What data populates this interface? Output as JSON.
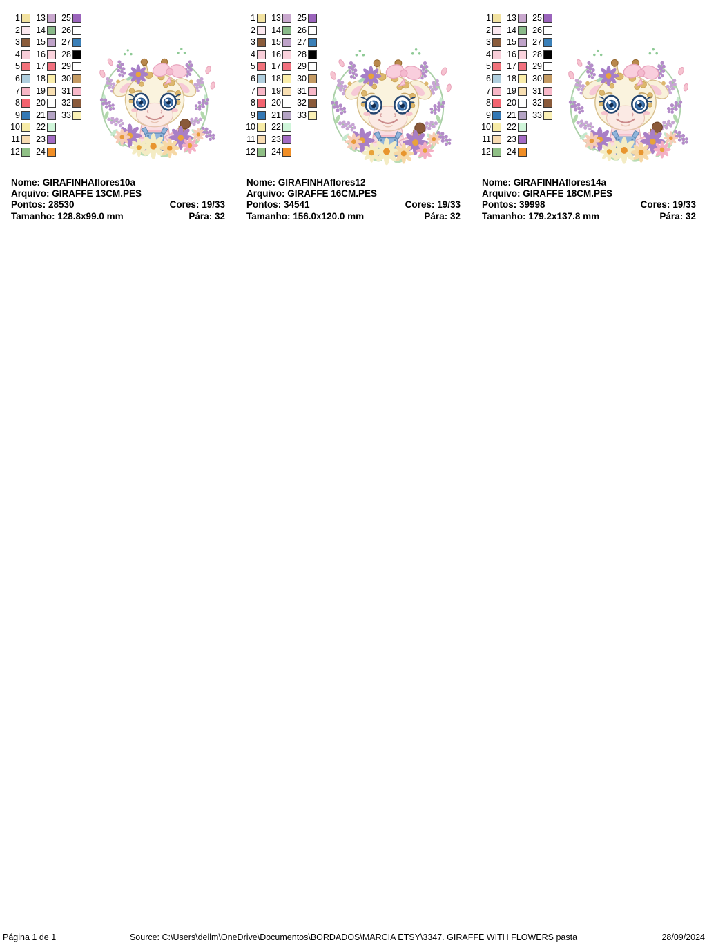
{
  "labels": {
    "nome": "Nome:",
    "arquivo": "Arquivo:",
    "pontos": "Pontos:",
    "cores": "Cores:",
    "tamanho": "Tamanho:",
    "para": "Pára:"
  },
  "palette": {
    "swatches": [
      {
        "n": "1",
        "color": "#F2E2A0"
      },
      {
        "n": "2",
        "color": "#FBE8EF"
      },
      {
        "n": "3",
        "color": "#8A5C3B"
      },
      {
        "n": "4",
        "color": "#F8CDD8"
      },
      {
        "n": "5",
        "color": "#F2727B"
      },
      {
        "n": "6",
        "color": "#AFCEDE"
      },
      {
        "n": "7",
        "color": "#F7B6C6"
      },
      {
        "n": "8",
        "color": "#F2636F"
      },
      {
        "n": "9",
        "color": "#3378B5"
      },
      {
        "n": "10",
        "color": "#F7EBA6"
      },
      {
        "n": "11",
        "color": "#F8DCB2"
      },
      {
        "n": "12",
        "color": "#8FBF85"
      },
      {
        "n": "13",
        "color": "#C9A8CE"
      },
      {
        "n": "14",
        "color": "#8ABA8A"
      },
      {
        "n": "15",
        "color": "#BFA3C9"
      },
      {
        "n": "16",
        "color": "#FAD2DC"
      },
      {
        "n": "17",
        "color": "#F2707E"
      },
      {
        "n": "18",
        "color": "#FAEDA9"
      },
      {
        "n": "19",
        "color": "#F8DFB2"
      },
      {
        "n": "20",
        "color": "#FEFEFD"
      },
      {
        "n": "21",
        "color": "#B4A3C4"
      },
      {
        "n": "22",
        "color": "#CFF5D9"
      },
      {
        "n": "23",
        "color": "#A36BC4"
      },
      {
        "n": "24",
        "color": "#F08E26"
      },
      {
        "n": "25",
        "color": "#9B64BC"
      },
      {
        "n": "26",
        "color": "#FFFFFF"
      },
      {
        "n": "27",
        "color": "#3B80B8"
      },
      {
        "n": "28",
        "color": "#000000"
      },
      {
        "n": "29",
        "color": "#FFFFFF"
      },
      {
        "n": "30",
        "color": "#C49A62"
      },
      {
        "n": "31",
        "color": "#F8B8C8"
      },
      {
        "n": "32",
        "color": "#8A5A3A"
      },
      {
        "n": "33",
        "color": "#FAF0B5"
      }
    ]
  },
  "designs": [
    {
      "nome": "GIRAFINHAflores10a",
      "arquivo": "GIRAFFE 13CM.PES",
      "pontos": "28530",
      "cores": "19/33",
      "tamanho": "128.8x99.0 mm",
      "para": "32"
    },
    {
      "nome": "GIRAFINHAflores12",
      "arquivo": "GIRAFFE 16CM.PES",
      "pontos": "34541",
      "cores": "19/33",
      "tamanho": "156.0x120.0 mm",
      "para": "32"
    },
    {
      "nome": "GIRAFINHAflores14a",
      "arquivo": "GIRAFFE 18CM.PES",
      "pontos": "39998",
      "cores": "19/33",
      "tamanho": "179.2x137.8 mm",
      "para": "32"
    }
  ],
  "footer": {
    "page": "Página 1 de 1",
    "source": "Source: C:\\Users\\dellm\\OneDrive\\Documentos\\BORDADOS\\MARCIA ETSY\\3347. GIRAFFE WITH FLOWERS pasta",
    "date": "28/09/2024"
  }
}
